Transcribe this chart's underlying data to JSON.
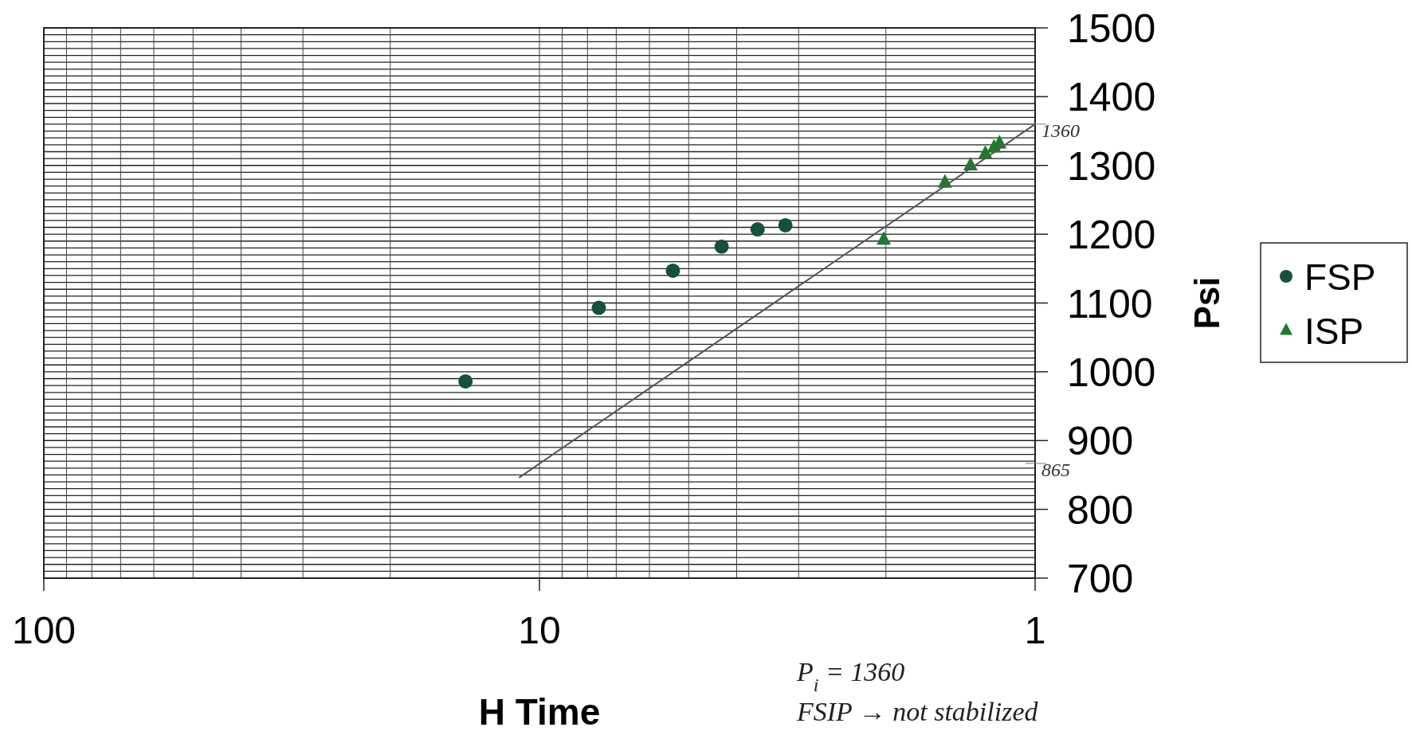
{
  "chart_data": {
    "type": "scatter",
    "xlabel": "H Time",
    "ylabel": "Psi",
    "log": "x",
    "xlim": [
      100,
      1
    ],
    "ylim": [
      700,
      1500
    ],
    "xticks": [
      100,
      {
        "value": 90,
        "label": null
      },
      {
        "value": 80,
        "label": null
      },
      {
        "value": 70,
        "label": null
      },
      {
        "value": 60,
        "label": null
      },
      {
        "value": 50,
        "label": null
      },
      {
        "value": 40,
        "label": null
      },
      {
        "value": 30,
        "label": null
      },
      {
        "value": 20,
        "label": null
      },
      10,
      {
        "value": 9,
        "label": null
      },
      {
        "value": 8,
        "label": null
      },
      {
        "value": 7,
        "label": null
      },
      {
        "value": 6,
        "label": null
      },
      {
        "value": 5,
        "label": null
      },
      {
        "value": 4,
        "label": null
      },
      {
        "value": 3,
        "label": null
      },
      {
        "value": 2,
        "label": null
      },
      1
    ],
    "yticks": [
      700,
      {
        "value": 710,
        "label": null
      },
      {
        "value": 720,
        "label": null
      },
      {
        "value": 730,
        "label": null
      },
      {
        "value": 740,
        "label": null
      },
      {
        "value": 750,
        "label": null
      },
      {
        "value": 760,
        "label": null
      },
      {
        "value": 770,
        "label": null
      },
      {
        "value": 780,
        "label": null
      },
      {
        "value": 790,
        "label": null
      },
      800,
      {
        "value": 810,
        "label": null
      },
      {
        "value": 820,
        "label": null
      },
      {
        "value": 830,
        "label": null
      },
      {
        "value": 840,
        "label": null
      },
      {
        "value": 850,
        "label": null
      },
      {
        "value": 860,
        "label": null
      },
      {
        "value": 870,
        "label": null
      },
      {
        "value": 880,
        "label": null
      },
      {
        "value": 890,
        "label": null
      },
      900,
      {
        "value": 910,
        "label": null
      },
      {
        "value": 920,
        "label": null
      },
      {
        "value": 930,
        "label": null
      },
      {
        "value": 940,
        "label": null
      },
      {
        "value": 950,
        "label": null
      },
      {
        "value": 960,
        "label": null
      },
      {
        "value": 970,
        "label": null
      },
      {
        "value": 980,
        "label": null
      },
      {
        "value": 990,
        "label": null
      },
      1000,
      {
        "value": 1010,
        "label": null
      },
      {
        "value": 1020,
        "label": null
      },
      {
        "value": 1030,
        "label": null
      },
      {
        "value": 1040,
        "label": null
      },
      {
        "value": 1050,
        "label": null
      },
      {
        "value": 1060,
        "label": null
      },
      {
        "value": 1070,
        "label": null
      },
      {
        "value": 1080,
        "label": null
      },
      {
        "value": 1090,
        "label": null
      },
      1100,
      {
        "value": 1110,
        "label": null
      },
      {
        "value": 1120,
        "label": null
      },
      {
        "value": 1130,
        "label": null
      },
      {
        "value": 1140,
        "label": null
      },
      {
        "value": 1150,
        "label": null
      },
      {
        "value": 1160,
        "label": null
      },
      {
        "value": 1170,
        "label": null
      },
      {
        "value": 1180,
        "label": null
      },
      {
        "value": 1190,
        "label": null
      },
      1200,
      {
        "value": 1210,
        "label": null
      },
      {
        "value": 1220,
        "label": null
      },
      {
        "value": 1230,
        "label": null
      },
      {
        "value": 1240,
        "label": null
      },
      {
        "value": 1250,
        "label": null
      },
      {
        "value": 1260,
        "label": null
      },
      {
        "value": 1270,
        "label": null
      },
      {
        "value": 1280,
        "label": null
      },
      {
        "value": 1290,
        "label": null
      },
      1300,
      {
        "value": 1310,
        "label": null
      },
      {
        "value": 1320,
        "label": null
      },
      {
        "value": 1330,
        "label": null
      },
      {
        "value": 1340,
        "label": null
      },
      {
        "value": 1350,
        "label": null
      },
      {
        "value": 1360,
        "label": null
      },
      {
        "value": 1370,
        "label": null
      },
      {
        "value": 1380,
        "label": null
      },
      {
        "value": 1390,
        "label": null
      },
      1400,
      {
        "value": 1410,
        "label": null
      },
      {
        "value": 1420,
        "label": null
      },
      {
        "value": 1430,
        "label": null
      },
      {
        "value": 1440,
        "label": null
      },
      {
        "value": 1450,
        "label": null
      },
      {
        "value": 1460,
        "label": null
      },
      {
        "value": 1470,
        "label": null
      },
      {
        "value": 1480,
        "label": null
      },
      {
        "value": 1490,
        "label": null
      },
      1500
    ],
    "grid": true,
    "legend": "right",
    "series": [
      {
        "name": "FSP",
        "marker": "circle",
        "color": "#17503a",
        "x": [
          14.1,
          7.59,
          5.38,
          4.29,
          3.63,
          3.19
        ],
        "values": [
          986,
          1093,
          1147,
          1182,
          1207,
          1213
        ]
      },
      {
        "name": "ISP",
        "marker": "triangle",
        "color": "#217a2c",
        "x": [
          2.02,
          1.52,
          1.35,
          1.26,
          1.21,
          1.18
        ],
        "values": [
          1192,
          1275,
          1300,
          1317,
          1326,
          1332
        ]
      },
      {
        "type": "line",
        "marker": "none",
        "color": "#555555",
        "x": [
          11,
          1
        ],
        "values": [
          846,
          1360
        ]
      }
    ],
    "annotations": [
      {
        "text": "1360",
        "x": 1,
        "y": 1360
      },
      "865",
      "P$_{i}$ = 1360",
      "FSIP → not stabilized"
    ]
  }
}
